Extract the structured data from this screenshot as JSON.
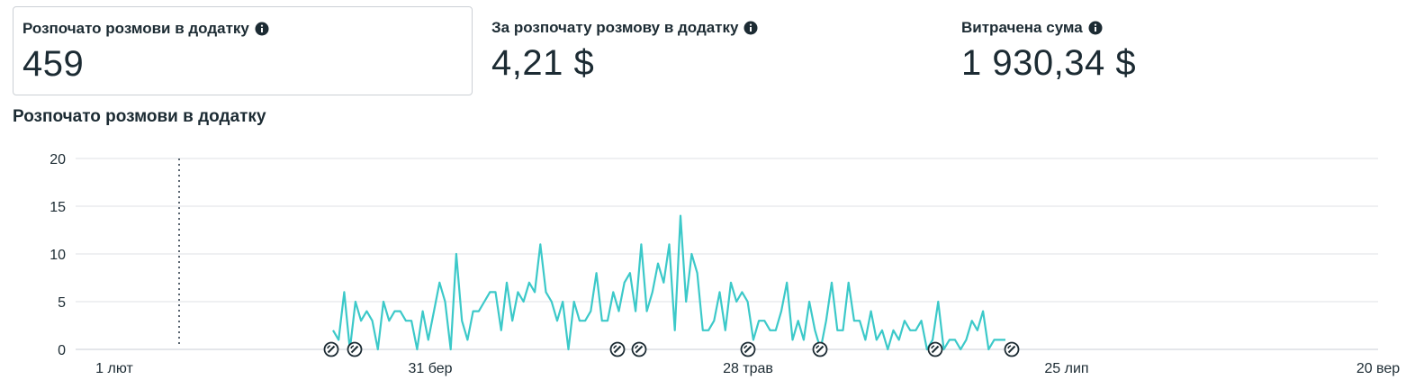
{
  "metrics": [
    {
      "label": "Розпочато розмови в додатку",
      "value": "459",
      "icon": "info-icon"
    },
    {
      "label": "За розпочату розмову в додатку",
      "value": "4,21 $",
      "icon": "info-icon"
    },
    {
      "label": "Витрачена сума",
      "value": "1 930,34 $",
      "icon": "info-icon"
    }
  ],
  "chart_data": {
    "type": "line",
    "title": "Розпочато розмови в додатку",
    "ylim": [
      0,
      20
    ],
    "y_ticks": [
      0,
      5,
      10,
      15,
      20
    ],
    "x_ticks": [
      "1 лют",
      "31 бер",
      "28 трав",
      "25 лип",
      "20 вер"
    ],
    "grid": true,
    "color": "#3cc9c9",
    "series": [
      {
        "values": [
          2,
          1,
          6,
          0,
          5,
          3,
          4,
          3,
          0,
          5,
          3,
          4,
          4,
          3,
          3,
          0,
          4,
          1,
          4,
          7,
          5,
          0,
          10,
          3,
          1,
          4,
          4,
          5,
          6,
          6,
          2,
          7,
          3,
          6,
          5,
          7,
          6,
          11,
          6,
          5,
          3,
          5,
          0,
          5,
          3,
          3,
          4,
          8,
          3,
          3,
          6,
          4,
          7,
          8,
          4,
          11,
          4,
          6,
          9,
          7,
          11,
          2,
          14,
          5,
          10,
          8,
          2,
          2,
          3,
          6,
          2,
          7,
          5,
          6,
          5,
          1,
          3,
          3,
          2,
          2,
          4,
          7,
          1,
          3,
          1,
          5,
          2,
          0,
          3,
          7,
          2,
          2,
          7,
          3,
          3,
          1,
          4,
          1,
          2,
          0,
          2,
          1,
          3,
          2,
          2,
          3,
          0,
          1,
          5,
          0,
          1,
          1,
          0,
          1,
          3,
          2,
          4,
          0,
          1,
          1,
          1
        ]
      }
    ],
    "annotation_markers": 8
  }
}
